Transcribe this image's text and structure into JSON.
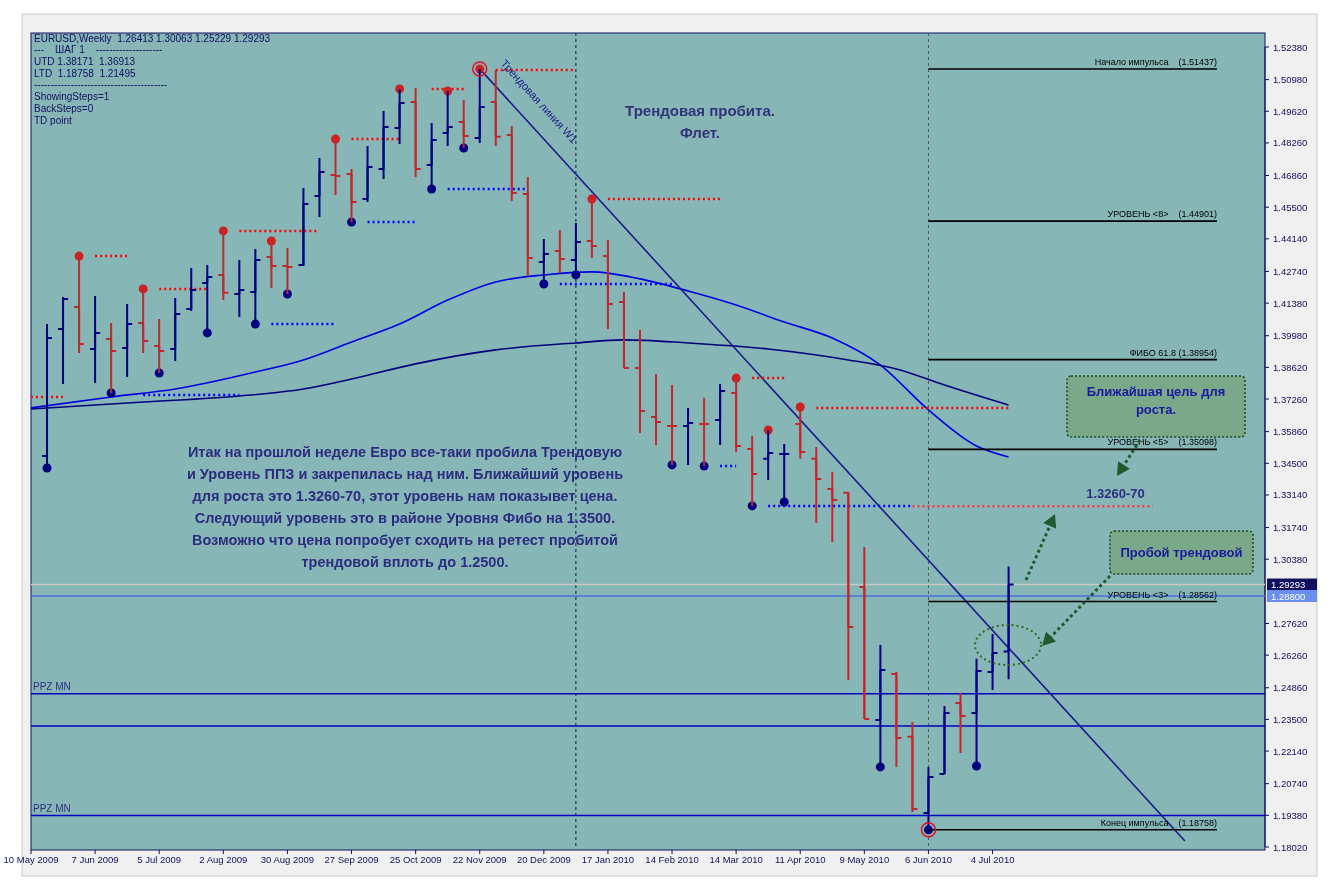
{
  "chart_data": {
    "type": "candlestick",
    "x": [
      "2009-05-17",
      "2009-05-24",
      "2009-05-31",
      "2009-06-07",
      "2009-06-14",
      "2009-06-21",
      "2009-06-28",
      "2009-07-05",
      "2009-07-12",
      "2009-07-19",
      "2009-07-26",
      "2009-08-02",
      "2009-08-09",
      "2009-08-16",
      "2009-08-23",
      "2009-08-30",
      "2009-09-06",
      "2009-09-13",
      "2009-09-20",
      "2009-09-27",
      "2009-10-04",
      "2009-10-11",
      "2009-10-18",
      "2009-10-25",
      "2009-11-01",
      "2009-11-08",
      "2009-11-15",
      "2009-11-22",
      "2009-11-29",
      "2009-12-06",
      "2009-12-13",
      "2009-12-20",
      "2009-12-27",
      "2010-01-03",
      "2010-01-10",
      "2010-01-17",
      "2010-01-24",
      "2010-01-31",
      "2010-02-07",
      "2010-02-14",
      "2010-02-21",
      "2010-02-28",
      "2010-03-07",
      "2010-03-14",
      "2010-03-21",
      "2010-03-28",
      "2010-04-04",
      "2010-04-11",
      "2010-04-18",
      "2010-04-25",
      "2010-05-02",
      "2010-05-09",
      "2010-05-16",
      "2010-05-23",
      "2010-05-30",
      "2010-06-06",
      "2010-06-13",
      "2010-06-20",
      "2010-06-27",
      "2010-07-04",
      "2010-07-11"
    ],
    "ohlc": [
      [
        1.3481,
        1.4048,
        1.343,
        1.3988
      ],
      [
        1.4027,
        1.4164,
        1.3791,
        1.4156
      ],
      [
        1.4121,
        1.434,
        1.3924,
        1.3962
      ],
      [
        1.3941,
        1.4169,
        1.3795,
        1.401
      ],
      [
        1.3984,
        1.4053,
        1.3752,
        1.3932
      ],
      [
        1.3945,
        1.4134,
        1.3821,
        1.4048
      ],
      [
        1.4053,
        1.4199,
        1.3924,
        1.3975
      ],
      [
        1.3954,
        1.407,
        1.3838,
        1.3932
      ],
      [
        1.3941,
        1.416,
        1.3889,
        1.4091
      ],
      [
        1.4113,
        1.4289,
        1.4104,
        1.4194
      ],
      [
        1.4224,
        1.4302,
        1.401,
        1.425
      ],
      [
        1.4259,
        1.4448,
        1.4151,
        1.4182
      ],
      [
        1.4177,
        1.4323,
        1.4078,
        1.4194
      ],
      [
        1.4186,
        1.437,
        1.4048,
        1.4323
      ],
      [
        1.4336,
        1.4405,
        1.4203,
        1.4297
      ],
      [
        1.4297,
        1.4375,
        1.4177,
        1.4293
      ],
      [
        1.4302,
        1.4632,
        1.4297,
        1.4564
      ],
      [
        1.4598,
        1.4761,
        1.4508,
        1.4701
      ],
      [
        1.4688,
        1.4843,
        1.4602,
        1.4684
      ],
      [
        1.4693,
        1.4714,
        1.4486,
        1.4572
      ],
      [
        1.4585,
        1.4813,
        1.4572,
        1.4723
      ],
      [
        1.4714,
        1.4963,
        1.4671,
        1.4894
      ],
      [
        1.489,
        1.5058,
        1.4821,
        1.4998
      ],
      [
        1.5002,
        1.5062,
        1.468,
        1.4714
      ],
      [
        1.4731,
        1.4912,
        1.4628,
        1.4839
      ],
      [
        1.4869,
        1.5049,
        1.4813,
        1.4894
      ],
      [
        1.4916,
        1.501,
        1.4804,
        1.4856
      ],
      [
        1.4847,
        1.51437,
        1.4826,
        1.498
      ],
      [
        1.5002,
        1.5139,
        1.4813,
        1.4852
      ],
      [
        1.486,
        1.4899,
        1.4577,
        1.4611
      ],
      [
        1.4607,
        1.468,
        1.4255,
        1.4332
      ],
      [
        1.4315,
        1.4413,
        1.422,
        1.4349
      ],
      [
        1.4362,
        1.4452,
        1.4267,
        1.4327
      ],
      [
        1.4323,
        1.4482,
        1.4259,
        1.4401
      ],
      [
        1.4405,
        1.4585,
        1.4332,
        1.4383
      ],
      [
        1.434,
        1.4409,
        1.4027,
        1.4134
      ],
      [
        1.4143,
        1.4186,
        1.3859,
        1.3859
      ],
      [
        1.3859,
        1.4023,
        1.358,
        1.3675
      ],
      [
        1.3649,
        1.3834,
        1.3529,
        1.3627
      ],
      [
        1.361,
        1.3786,
        1.3443,
        1.361
      ],
      [
        1.361,
        1.3688,
        1.3443,
        1.3623
      ],
      [
        1.3619,
        1.3731,
        1.3438,
        1.3619
      ],
      [
        1.3636,
        1.3791,
        1.3529,
        1.3761
      ],
      [
        1.3752,
        1.3816,
        1.3499,
        1.3524
      ],
      [
        1.3511,
        1.3567,
        1.3267,
        1.3404
      ],
      [
        1.3469,
        1.3593,
        1.3378,
        1.3494
      ],
      [
        1.349,
        1.3533,
        1.3284,
        1.349
      ],
      [
        1.3619,
        1.3692,
        1.3469,
        1.3499
      ],
      [
        1.3469,
        1.352,
        1.3194,
        1.3383
      ],
      [
        1.334,
        1.3413,
        1.3112,
        1.3292
      ],
      [
        1.3323,
        1.3327,
        1.2519,
        1.2747
      ],
      [
        1.2919,
        1.3091,
        1.2352,
        1.2352
      ],
      [
        1.2348,
        1.267,
        1.2146,
        1.2562
      ],
      [
        1.2545,
        1.2554,
        1.2146,
        1.227
      ],
      [
        1.2275,
        1.2339,
        1.1952,
        1.1965
      ],
      [
        1.1948,
        1.2146,
        1.18758,
        1.2103
      ],
      [
        1.2116,
        1.2408,
        1.2116,
        1.2378
      ],
      [
        1.2421,
        1.2464,
        1.2206,
        1.2365
      ],
      [
        1.2378,
        1.261,
        1.215,
        1.2558
      ],
      [
        1.2554,
        1.2717,
        1.2476,
        1.2635
      ],
      [
        1.26413,
        1.30063,
        1.25229,
        1.29293
      ]
    ],
    "colors": [
      "#000080",
      "#000080",
      "#c0282d",
      "#000080",
      "#c0282d",
      "#000080",
      "#c0282d",
      "#c0282d",
      "#000080",
      "#000080",
      "#000080",
      "#c0282d",
      "#000080",
      "#000080",
      "#c0282d",
      "#c0282d",
      "#000080",
      "#000080",
      "#c0282d",
      "#c0282d",
      "#000080",
      "#000080",
      "#000080",
      "#c0282d",
      "#000080",
      "#000080",
      "#c0282d",
      "#000080",
      "#c0282d",
      "#c0282d",
      "#c0282d",
      "#000080",
      "#c0282d",
      "#000080",
      "#c0282d",
      "#c0282d",
      "#c0282d",
      "#c0282d",
      "#c0282d",
      "#c0282d",
      "#000080",
      "#c0282d",
      "#000080",
      "#c0282d",
      "#c0282d",
      "#000080",
      "#000080",
      "#c0282d",
      "#c0282d",
      "#c0282d",
      "#c0282d",
      "#c0282d",
      "#000080",
      "#c0282d",
      "#c0282d",
      "#000080",
      "#000080",
      "#c0282d",
      "#000080",
      "#000080",
      "#000080"
    ],
    "series": [
      {
        "type": "line",
        "color": "#0000e0",
        "x": [
          "2009-05-10",
          "2009-06-14",
          "2009-07-12",
          "2009-08-16",
          "2009-09-06",
          "2009-09-27",
          "2009-10-18",
          "2009-11-08",
          "2009-11-29",
          "2009-12-20",
          "2010-01-10",
          "2010-01-31",
          "2010-02-21",
          "2010-03-14",
          "2010-04-04",
          "2010-04-25",
          "2010-05-16",
          "2010-06-06",
          "2010-06-27",
          "2010-07-11"
        ],
        "values": [
          1.3688,
          1.3735,
          1.3769,
          1.3842,
          1.3894,
          1.3971,
          1.4048,
          1.4151,
          1.4229,
          1.4259,
          1.4272,
          1.4242,
          1.419,
          1.413,
          1.4057,
          1.3988,
          1.3872,
          1.3679,
          1.3524,
          1.3477
        ]
      },
      {
        "type": "line",
        "color": "#00007f",
        "x": [
          "2009-05-10",
          "2009-06-28",
          "2009-08-09",
          "2009-09-06",
          "2009-09-27",
          "2009-10-25",
          "2009-11-29",
          "2010-01-03",
          "2010-01-24",
          "2010-02-21",
          "2010-03-28",
          "2010-05-02",
          "2010-05-23",
          "2010-06-13",
          "2010-07-11"
        ],
        "values": [
          1.3683,
          1.3713,
          1.3739,
          1.3769,
          1.3812,
          1.3877,
          1.3937,
          1.3967,
          1.398,
          1.3967,
          1.3941,
          1.3894,
          1.3855,
          1.3786,
          1.37
        ]
      },
      {
        "type": "line",
        "color": "#1c1c8c",
        "x": [
          "2009-11-22",
          "2010-09-26"
        ],
        "values": [
          1.5144,
          1.1828
        ]
      },
      {
        "type": "line",
        "color": "#ff0000",
        "line_style": "dotted",
        "x": [
          "2009-05-10",
          "2009-05-24"
        ],
        "values": [
          1.3735,
          1.3735
        ]
      },
      {
        "type": "line",
        "color": "#ff0000",
        "line_style": "dotted",
        "x": [
          "2009-06-07",
          "2009-06-21"
        ],
        "values": [
          1.434,
          1.434
        ]
      },
      {
        "type": "line",
        "color": "#ff0000",
        "line_style": "dotted",
        "x": [
          "2009-07-05",
          "2009-07-26"
        ],
        "values": [
          1.4199,
          1.4199
        ]
      },
      {
        "type": "line",
        "color": "#ff0000",
        "line_style": "dotted",
        "x": [
          "2009-08-09",
          "2009-09-13"
        ],
        "values": [
          1.4448,
          1.4448
        ]
      },
      {
        "type": "line",
        "color": "#ff0000",
        "line_style": "dotted",
        "x": [
          "2009-09-27",
          "2009-10-18"
        ],
        "values": [
          1.4843,
          1.4843
        ]
      },
      {
        "type": "line",
        "color": "#ff0000",
        "line_style": "dotted",
        "x": [
          "2009-11-01",
          "2009-11-15"
        ],
        "values": [
          1.5058,
          1.5058
        ]
      },
      {
        "type": "line",
        "color": "#ff0000",
        "line_style": "dotted",
        "x": [
          "2009-11-29",
          "2010-01-03"
        ],
        "values": [
          1.5139,
          1.5139
        ]
      },
      {
        "type": "line",
        "color": "#ff0000",
        "line_style": "dotted",
        "x": [
          "2010-01-17",
          "2010-03-07"
        ],
        "values": [
          1.4585,
          1.4585
        ]
      },
      {
        "type": "line",
        "color": "#ff0000",
        "line_style": "dotted",
        "x": [
          "2010-03-21",
          "2010-04-04"
        ],
        "values": [
          1.3816,
          1.3816
        ]
      },
      {
        "type": "line",
        "color": "#ff0000",
        "line_style": "dotted",
        "x": [
          "2010-04-18",
          "2010-07-11"
        ],
        "values": [
          1.3688,
          1.3688
        ]
      },
      {
        "type": "line",
        "color": "#0000ff",
        "line_style": "dotted",
        "x": [
          "2009-06-28",
          "2009-08-09"
        ],
        "values": [
          1.3743,
          1.3743
        ]
      },
      {
        "type": "line",
        "color": "#0000ff",
        "line_style": "dotted",
        "x": [
          "2009-08-23",
          "2009-09-20"
        ],
        "values": [
          1.4048,
          1.4048
        ]
      },
      {
        "type": "line",
        "color": "#0000ff",
        "line_style": "dotted",
        "x": [
          "2009-10-04",
          "2009-10-25"
        ],
        "values": [
          1.4486,
          1.4486
        ]
      },
      {
        "type": "line",
        "color": "#0000ff",
        "line_style": "dotted",
        "x": [
          "2009-11-08",
          "2009-12-13"
        ],
        "values": [
          1.4628,
          1.4628
        ]
      },
      {
        "type": "line",
        "color": "#0000ff",
        "line_style": "dotted",
        "x": [
          "2009-12-27",
          "2010-02-14"
        ],
        "values": [
          1.422,
          1.422
        ]
      },
      {
        "type": "line",
        "color": "#0000ff",
        "line_style": "dotted",
        "x": [
          "2010-03-07",
          "2010-03-14"
        ],
        "values": [
          1.3438,
          1.3438
        ]
      },
      {
        "type": "line",
        "color": "#0000ff",
        "line_style": "dotted",
        "x": [
          "2010-03-28",
          "2010-05-30"
        ],
        "values": [
          1.3267,
          1.3267
        ]
      },
      {
        "type": "scatter",
        "color": "#cc2222",
        "marker": "circle",
        "x": [
          "2009-05-31",
          "2009-06-28",
          "2009-08-02",
          "2009-08-23",
          "2009-09-20",
          "2009-10-18",
          "2009-11-08",
          "2009-11-22",
          "2010-01-10",
          "2010-03-14",
          "2010-03-28",
          "2010-04-11"
        ],
        "values": [
          1.434,
          1.4199,
          1.4448,
          1.4405,
          1.4843,
          1.5058,
          1.5049,
          1.51437,
          1.4585,
          1.3816,
          1.3593,
          1.3692
        ]
      },
      {
        "type": "scatter",
        "color": "#000080",
        "marker": "circle",
        "x": [
          "2009-05-17",
          "2009-06-14",
          "2009-07-05",
          "2009-07-26",
          "2009-08-16",
          "2009-08-30",
          "2009-09-27",
          "2009-11-01",
          "2009-11-15",
          "2009-12-20",
          "2010-01-03",
          "2010-02-14",
          "2010-02-28",
          "2010-03-21",
          "2010-04-04",
          "2010-05-16",
          "2010-06-06",
          "2010-06-27"
        ],
        "values": [
          1.343,
          1.3752,
          1.3838,
          1.401,
          1.4048,
          1.4177,
          1.4486,
          1.4628,
          1.4804,
          1.422,
          1.4259,
          1.3443,
          1.3438,
          1.3267,
          1.3284,
          1.2146,
          1.18758,
          1.215
        ]
      },
      {
        "type": "line",
        "name": "1.3260-70",
        "color": "#ff3344",
        "line_style": "dotted",
        "x": [
          "2010-05-30",
          "2010-09-12"
        ],
        "values": [
          1.3265,
          1.3265
        ]
      },
      {
        "type": "line",
        "name": "Начало импульса    (1.51437)",
        "color": "#000000",
        "x": [
          "2010-06-06",
          "2010-10-10"
        ],
        "values": [
          1.51437,
          1.51437
        ]
      },
      {
        "type": "line",
        "name": "УРОВЕНЬ <8>    (1.44901)",
        "color": "#000000",
        "x": [
          "2010-06-06",
          "2010-10-10"
        ],
        "values": [
          1.44901,
          1.44901
        ]
      },
      {
        "type": "line",
        "name": "ФИБО 61.8 (1.38954)",
        "color": "#000000",
        "x": [
          "2010-06-06",
          "2010-10-10"
        ],
        "values": [
          1.38954,
          1.38954
        ]
      },
      {
        "type": "line",
        "name": "УРОВЕНЬ <5>    (1.35098)",
        "color": "#000000",
        "x": [
          "2010-06-06",
          "2010-10-10"
        ],
        "values": [
          1.35098,
          1.35098
        ]
      },
      {
        "type": "line",
        "name": "УРОВЕНЬ <3>    (1.28562)",
        "color": "#000000",
        "x": [
          "2010-06-06",
          "2010-10-10"
        ],
        "values": [
          1.28562,
          1.28562
        ]
      },
      {
        "type": "line",
        "name": "Конец импульса    (1.18758)",
        "color": "#000000",
        "x": [
          "2010-06-06",
          "2010-10-10"
        ],
        "values": [
          1.18758,
          1.18758
        ]
      }
    ],
    "xlim": [
      "2009-05-10",
      "2010-10-31"
    ],
    "xticks": [
      {
        "value": "2009-05-10",
        "label": "10 May 2009"
      },
      {
        "value": "2009-06-07",
        "label": "7 Jun 2009"
      },
      {
        "value": "2009-07-05",
        "label": "5 Jul 2009"
      },
      {
        "value": "2009-08-02",
        "label": "2 Aug 2009"
      },
      {
        "value": "2009-08-30",
        "label": "30 Aug 2009"
      },
      {
        "value": "2009-09-27",
        "label": "27 Sep 2009"
      },
      {
        "value": "2009-10-25",
        "label": "25 Oct 2009"
      },
      {
        "value": "2009-11-22",
        "label": "22 Nov 2009"
      },
      {
        "value": "2009-12-20",
        "label": "20 Dec 2009"
      },
      {
        "value": "2010-01-17",
        "label": "17 Jan 2010"
      },
      {
        "value": "2010-02-14",
        "label": "14 Feb 2010"
      },
      {
        "value": "2010-03-14",
        "label": "14 Mar 2010"
      },
      {
        "value": "2010-04-11",
        "label": "11 Apr 2010"
      },
      {
        "value": "2010-05-09",
        "label": "9 May 2010"
      },
      {
        "value": "2010-06-06",
        "label": "6 Jun 2010"
      },
      {
        "value": "2010-07-04",
        "label": "4 Jul 2010"
      }
    ],
    "ylim": [
      1.1802,
      1.5238
    ],
    "yticks": [
      {
        "value": 1.5238,
        "label": "1.52380"
      },
      {
        "value": 1.5098,
        "label": "1.50980"
      },
      {
        "value": 1.4962,
        "label": "1.49620"
      },
      {
        "value": 1.4826,
        "label": "1.48260"
      },
      {
        "value": 1.4686,
        "label": "1.46860"
      },
      {
        "value": 1.455,
        "label": "1.45500"
      },
      {
        "value": 1.4414,
        "label": "1.44140"
      },
      {
        "value": 1.4274,
        "label": "1.42740"
      },
      {
        "value": 1.4138,
        "label": "1.41380"
      },
      {
        "value": 1.3998,
        "label": "1.39980"
      },
      {
        "value": 1.3862,
        "label": "1.38620"
      },
      {
        "value": 1.3726,
        "label": "1.37260"
      },
      {
        "value": 1.3586,
        "label": "1.35860"
      },
      {
        "value": 1.345,
        "label": "1.34500"
      },
      {
        "value": 1.3314,
        "label": "1.33140"
      },
      {
        "value": 1.3174,
        "label": "1.31740"
      },
      {
        "value": 1.3038,
        "label": "1.30380"
      },
      {
        "value": 1.2762,
        "label": "1.27620"
      },
      {
        "value": 1.2626,
        "label": "1.26260"
      },
      {
        "value": 1.2486,
        "label": "1.24860"
      },
      {
        "value": 1.235,
        "label": "1.23500"
      },
      {
        "value": 1.2214,
        "label": "1.22140"
      },
      {
        "value": 1.2074,
        "label": "1.20740"
      },
      {
        "value": 1.1938,
        "label": "1.19380"
      },
      {
        "value": 1.1802,
        "label": "1.18020"
      }
    ],
    "ref_lines": [
      {
        "axis": "x",
        "value": "2010-01-03",
        "color": "#1a1a4a",
        "line_style": "dashed"
      },
      {
        "axis": "x",
        "value": "2010-06-06",
        "color": "#555555",
        "line_style": "dashed"
      },
      {
        "axis": "y",
        "value": 1.246,
        "label": "PPZ MN",
        "color": "#0000c0"
      },
      {
        "axis": "y",
        "value": 1.2322,
        "color": "#0000c0"
      },
      {
        "axis": "y",
        "value": 1.1937,
        "label": "PPZ MN",
        "color": "#0000c0"
      },
      {
        "axis": "y",
        "value": 1.29293,
        "color": "#c8c8c8"
      },
      {
        "axis": "y",
        "value": 1.288,
        "color": "#4a6fe0"
      }
    ],
    "annotations": [
      "EURUSD,Weekly  1.26413 1.30063 1.25229 1.29293",
      "---    ШАГ 1    --------------------",
      "UTD 1.38171  1.36913",
      "LTD  1.18758  1.21495",
      "----------------------------------------",
      "ShowingSteps=1",
      "BackSteps=0",
      "TD point",
      "Трендовая пробита.",
      "Флет.",
      "Трендовая линия W1",
      "Итак на прошлой неделе Евро все-таки пробила Трендовую",
      "и Уровень ППЗ и закрепилась над ним. Ближайший уровень",
      "для роста это 1.3260-70, этот уровень нам показывет цена.",
      "Следующий уровень это в районе Уровня Фибо на 1.3500.",
      "Возможно что цена попробует сходить на ретест пробитой",
      "трендовой вплоть до 1.2500.",
      "Ближайшая цель для роста.",
      "Пробой трендовой",
      "1.29293",
      "1.28800"
    ]
  }
}
